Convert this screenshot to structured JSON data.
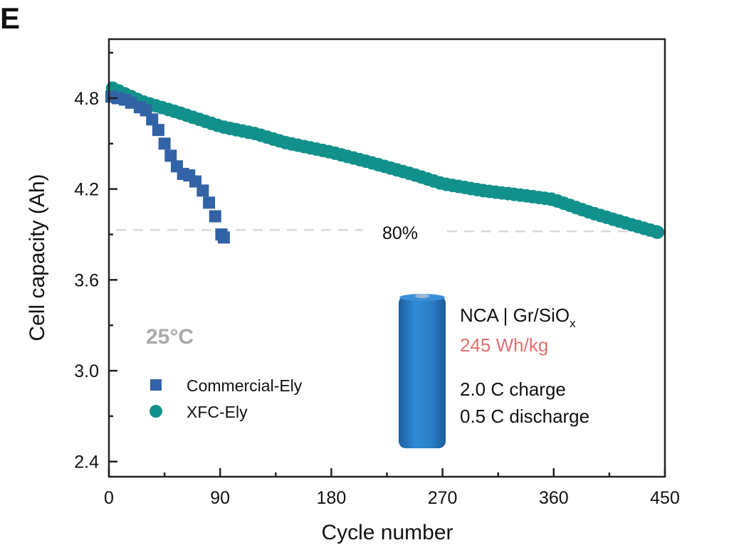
{
  "panel_label": "E",
  "chart_data": {
    "type": "scatter",
    "title": "",
    "xlabel": "Cycle number",
    "ylabel": "Cell capacity (Ah)",
    "xlim": [
      0,
      450
    ],
    "ylim": [
      2.3,
      5.19
    ],
    "xticks": [
      0,
      90,
      180,
      270,
      360,
      450
    ],
    "xtick_labels": [
      "0",
      "90",
      "180",
      "270",
      "360",
      "450"
    ],
    "yticks": [
      2.4,
      3.0,
      3.6,
      4.2,
      4.8
    ],
    "ytick_labels": [
      "2.4",
      "3.0",
      "3.6",
      "4.2",
      "4.8"
    ],
    "grid": false,
    "legend_position": "lower-left",
    "reference_line": {
      "y": 3.93,
      "label": "80%",
      "color": "#d9d9d9",
      "style": "dashed"
    },
    "annotations": {
      "temperature": "25°C",
      "chemistry_main": "NCA | Gr/SiO",
      "chemistry_sub": "x",
      "energy_density": "245 Wh/kg",
      "charge_rate": "2.0 C charge",
      "discharge_rate": "0.5 C discharge"
    },
    "colors": {
      "commercial": "#3263a6",
      "xfc": "#12918c",
      "energy_density": "#e07070",
      "temperature": "#aaaaaa",
      "battery": "#2a7fc6"
    },
    "series": [
      {
        "name": "Commercial-Ely",
        "marker": "square",
        "x": [
          2,
          7,
          13,
          18,
          25,
          30,
          35,
          40,
          45,
          50,
          55,
          60,
          65,
          70,
          76,
          81,
          86,
          91,
          93
        ],
        "y": [
          4.81,
          4.8,
          4.79,
          4.77,
          4.74,
          4.72,
          4.66,
          4.59,
          4.5,
          4.42,
          4.35,
          4.3,
          4.29,
          4.25,
          4.19,
          4.11,
          4.02,
          3.9,
          3.88
        ]
      },
      {
        "name": "XFC-Ely",
        "marker": "circle",
        "x": [
          3,
          27,
          56,
          91,
          119,
          142,
          180,
          211,
          246,
          270,
          304,
          338,
          359,
          389,
          418,
          444
        ],
        "y": [
          4.866,
          4.777,
          4.706,
          4.612,
          4.565,
          4.508,
          4.443,
          4.377,
          4.297,
          4.235,
          4.188,
          4.155,
          4.132,
          4.047,
          3.976,
          3.915
        ]
      }
    ]
  }
}
